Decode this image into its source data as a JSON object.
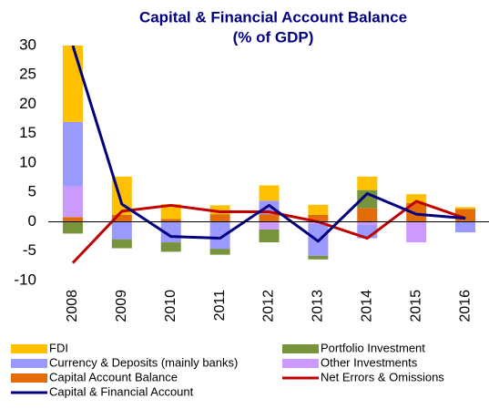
{
  "chart_data": {
    "type": "bar",
    "title": [
      "Capital & Financial Account Balance",
      "(% of GDP)"
    ],
    "categories": [
      "2008",
      "2009",
      "2010",
      "2011",
      "2012",
      "2013",
      "2014",
      "2015",
      "2016"
    ],
    "series": [
      {
        "name": "FDI",
        "type": "bar",
        "color": "#ffc000",
        "values": [
          13,
          6.5,
          2.5,
          1.5,
          2.6,
          1.7,
          2.3,
          1.5,
          0.3
        ]
      },
      {
        "name": "Portfolio Investment",
        "type": "bar",
        "color": "#77933c",
        "values": [
          -2,
          -1.5,
          -1.6,
          -1,
          -2.2,
          -0.6,
          3.1,
          0,
          0
        ]
      },
      {
        "name": "Currency & Deposits (mainly banks)",
        "type": "bar",
        "color": "#9999ff",
        "values": [
          11,
          -3,
          -3.5,
          -4.6,
          2.3,
          -5.5,
          -2.3,
          0,
          -1.8
        ]
      },
      {
        "name": "Other Investments",
        "type": "bar",
        "color": "#cc99ff",
        "values": [
          5.2,
          0,
          0,
          0,
          -1.3,
          -0.3,
          -0.5,
          -3.5,
          0
        ]
      },
      {
        "name": "Capital Account Balance",
        "type": "bar",
        "color": "#e36c09",
        "values": [
          0.8,
          1.2,
          0.5,
          1.3,
          1.3,
          1.2,
          2.3,
          3.2,
          2.2
        ]
      },
      {
        "name": "Net Errors & Omissions",
        "type": "line",
        "color": "#c00000",
        "values": [
          -7,
          1.8,
          2.8,
          1.7,
          1.7,
          0,
          -2.8,
          3.5,
          0.6
        ]
      },
      {
        "name": "Capital & Financial Account",
        "type": "line",
        "color": "#000080",
        "values": [
          30,
          3,
          -2.5,
          -2.8,
          2.8,
          -3.3,
          4.8,
          1.3,
          0.6
        ]
      }
    ],
    "ylim": [
      -10,
      30
    ],
    "yticks": [
      -10,
      -5,
      0,
      5,
      10,
      15,
      20,
      25,
      30
    ],
    "grid": false,
    "legend": "bottom"
  }
}
